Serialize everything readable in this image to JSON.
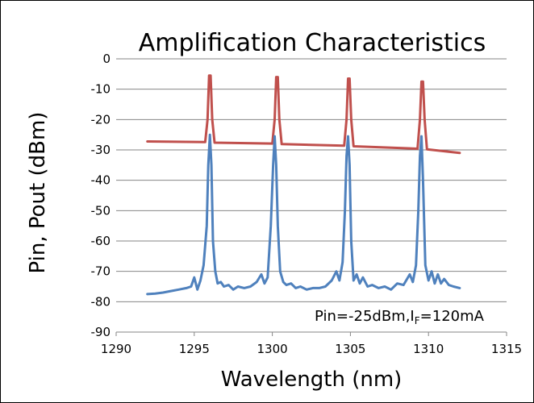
{
  "chart_data": {
    "type": "line",
    "title": "Amplification Characteristics",
    "xlabel": "Wavelength (nm)",
    "ylabel": "Pin, Pout (dBm)",
    "xlim": [
      1290,
      1315
    ],
    "ylim": [
      -90,
      0
    ],
    "xticks": [
      "1290",
      "1295",
      "1300",
      "1305",
      "1310",
      "1315"
    ],
    "yticks": [
      "0",
      "-10",
      "-20",
      "-30",
      "-40",
      "-50",
      "-60",
      "-70",
      "-80",
      "-90"
    ],
    "grid": "horizontal",
    "annotation": {
      "prefix": "Pin=-25dBm,I",
      "sub": "F",
      "suffix": "=120mA"
    },
    "series": [
      {
        "color": "#c0504d",
        "x": [
          1292,
          1295.7,
          1295.85,
          1295.95,
          1296.05,
          1296.15,
          1296.3,
          1300.0,
          1300.15,
          1300.25,
          1300.35,
          1300.45,
          1300.6,
          1304.6,
          1304.75,
          1304.85,
          1304.95,
          1305.05,
          1305.2,
          1309.3,
          1309.45,
          1309.55,
          1309.65,
          1309.75,
          1309.9,
          1312
        ],
        "y": [
          -27.2,
          -27.4,
          -20,
          -5.5,
          -5.5,
          -20,
          -27.6,
          -27.9,
          -20,
          -6,
          -6,
          -20,
          -28.1,
          -28.6,
          -20,
          -6.5,
          -6.5,
          -20,
          -28.8,
          -29.6,
          -20,
          -7.5,
          -7.5,
          -20,
          -29.8,
          -31
        ]
      },
      {
        "color": "#4f81bd",
        "x": [
          1292,
          1292.5,
          1293,
          1293.5,
          1294,
          1294.5,
          1294.8,
          1295.0,
          1295.2,
          1295.4,
          1295.6,
          1295.8,
          1295.9,
          1296.0,
          1296.1,
          1296.2,
          1296.35,
          1296.5,
          1296.7,
          1296.9,
          1297.2,
          1297.5,
          1297.8,
          1298.2,
          1298.6,
          1299.0,
          1299.3,
          1299.5,
          1299.7,
          1299.9,
          1300.05,
          1300.15,
          1300.25,
          1300.35,
          1300.5,
          1300.7,
          1300.9,
          1301.2,
          1301.5,
          1301.8,
          1302.2,
          1302.6,
          1303.0,
          1303.4,
          1303.8,
          1304.1,
          1304.3,
          1304.5,
          1304.65,
          1304.75,
          1304.85,
          1304.95,
          1305.05,
          1305.2,
          1305.4,
          1305.6,
          1305.8,
          1306.1,
          1306.4,
          1306.8,
          1307.2,
          1307.6,
          1308.0,
          1308.4,
          1308.8,
          1309.0,
          1309.2,
          1309.35,
          1309.45,
          1309.55,
          1309.65,
          1309.8,
          1310.0,
          1310.2,
          1310.4,
          1310.6,
          1310.8,
          1311.0,
          1311.3,
          1311.6,
          1312
        ],
        "y": [
          -77.5,
          -77.3,
          -77,
          -76.5,
          -76,
          -75.5,
          -75,
          -72,
          -76,
          -73,
          -68,
          -55,
          -35,
          -25,
          -35,
          -60,
          -70,
          -74,
          -73.5,
          -75,
          -74.5,
          -76,
          -75,
          -75.5,
          -75,
          -73.5,
          -71,
          -74,
          -72,
          -55,
          -35,
          -25.5,
          -35,
          -55,
          -70,
          -73.5,
          -74.5,
          -74,
          -75.5,
          -75,
          -76,
          -75.5,
          -75.5,
          -75,
          -73,
          -70,
          -73,
          -67,
          -50,
          -32,
          -25.5,
          -35,
          -60,
          -73,
          -71,
          -74,
          -72,
          -75,
          -74.5,
          -75.5,
          -75,
          -76,
          -74,
          -74.5,
          -71,
          -73.5,
          -68,
          -50,
          -32,
          -25.5,
          -40,
          -68,
          -73,
          -70,
          -74,
          -71,
          -74,
          -72.5,
          -74.5,
          -75,
          -75.5
        ]
      }
    ]
  }
}
